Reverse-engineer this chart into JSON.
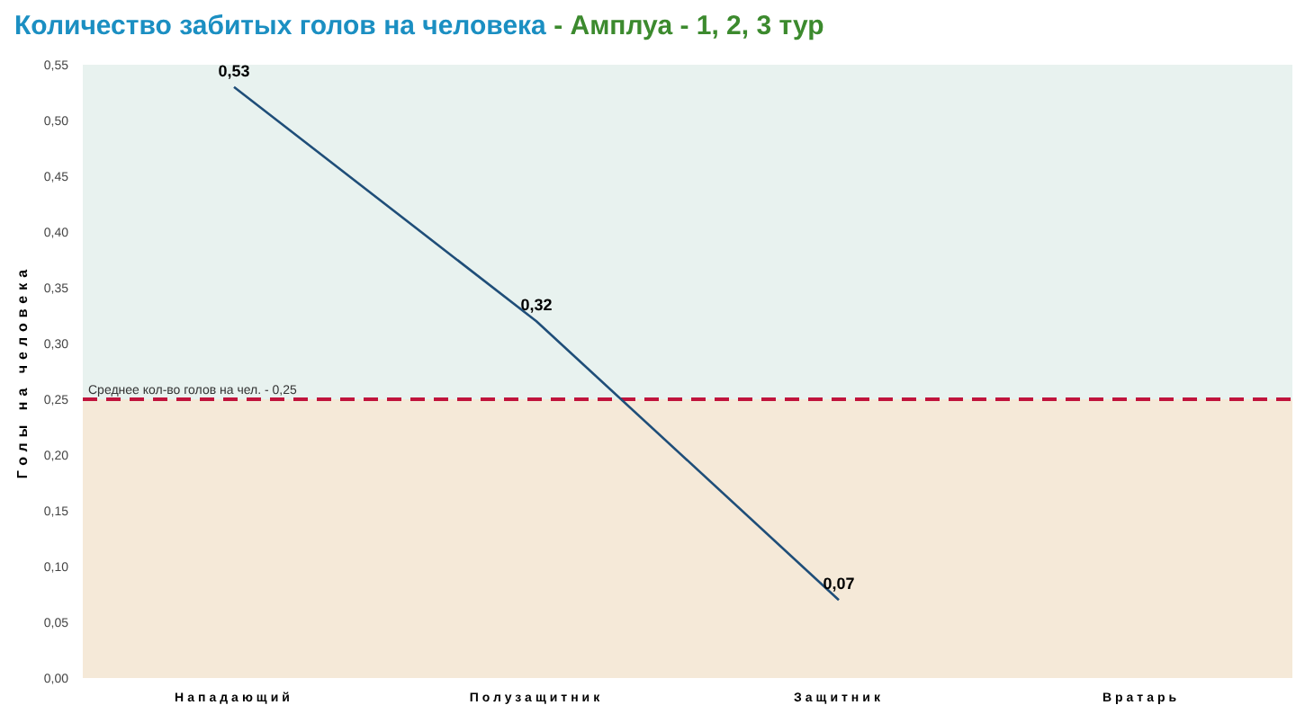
{
  "chart_data": {
    "type": "line",
    "title": "Количество забитых голов на человека",
    "subtitle": "- Амплуа - 1, 2, 3 тур",
    "ylabel": "Голы на человека",
    "categories": [
      "Нападающий",
      "Полузащитник",
      "Защитник",
      "Вратарь"
    ],
    "series": [
      {
        "color": "#1f4e79",
        "values": [
          0.53,
          0.32,
          0.07,
          null
        ],
        "value_labels": [
          "0,53",
          "0,32",
          "0,07",
          null
        ]
      }
    ],
    "ylim": [
      0,
      0.55
    ],
    "yticks": [
      {
        "value": 0,
        "label": "0,00"
      },
      {
        "value": 0.05,
        "label": "0,05"
      },
      {
        "value": 0.1,
        "label": "0,10"
      },
      {
        "value": 0.15,
        "label": "0,15"
      },
      {
        "value": 0.2,
        "label": "0,20"
      },
      {
        "value": 0.25,
        "label": "0,25"
      },
      {
        "value": 0.3,
        "label": "0,30"
      },
      {
        "value": 0.35,
        "label": "0,35"
      },
      {
        "value": 0.4,
        "label": "0,40"
      },
      {
        "value": 0.45,
        "label": "0,45"
      },
      {
        "value": 0.5,
        "label": "0,50"
      },
      {
        "value": 0.55,
        "label": "0,55"
      }
    ],
    "ref_lines": [
      {
        "axis": "y",
        "value": 0.25,
        "label": "Среднее кол-во голов на чел. - 0,25",
        "color": "#c0143c",
        "line_style": "dashed"
      }
    ],
    "bands": [
      {
        "axis": "y",
        "from": 0.25,
        "to": 0.55,
        "color": "#e8f2ef"
      },
      {
        "axis": "y",
        "from": 0,
        "to": 0.25,
        "color": "#f5e9d8"
      }
    ],
    "grid": false,
    "legend": false,
    "marker": "none",
    "line_style": "solid"
  }
}
